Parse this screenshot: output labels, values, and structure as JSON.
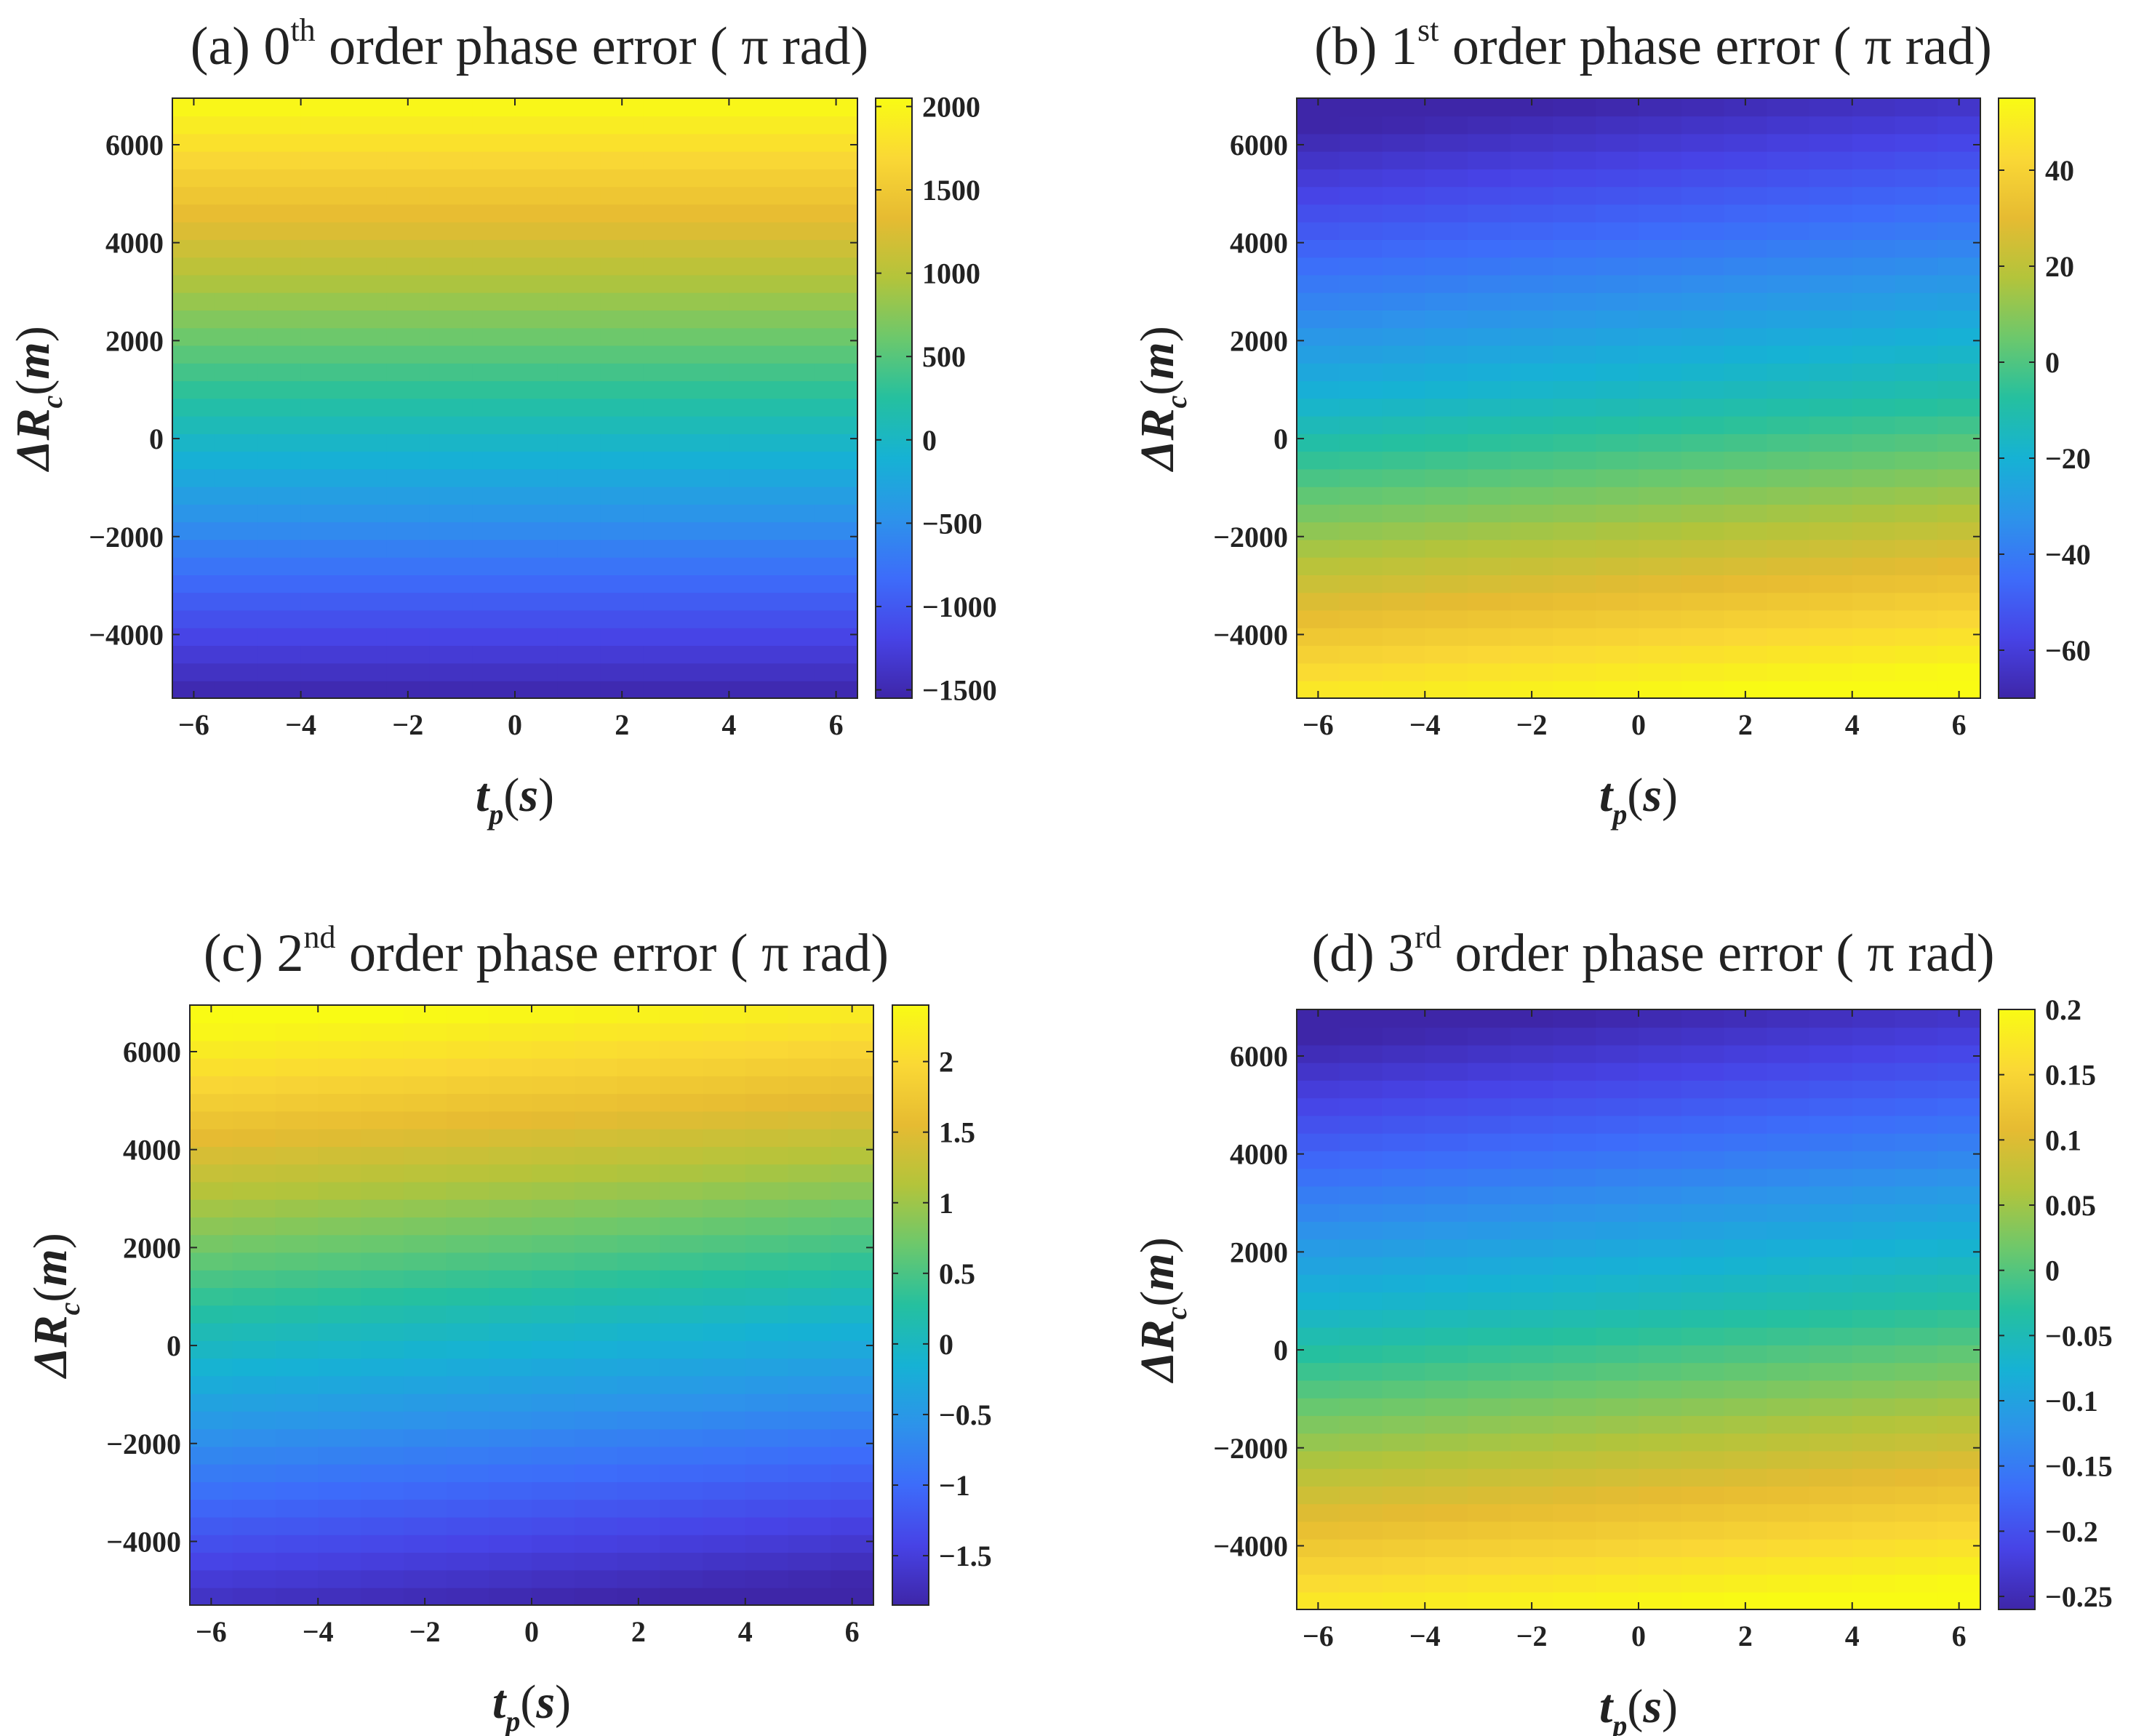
{
  "chart_data": [
    {
      "panel": "(a)",
      "type": "heatmap",
      "title": {
        "prefix": "(a) 0",
        "sup": "th",
        "suffix": " order phase error ( π  rad)"
      },
      "xlabel": {
        "main": "t",
        "sub": "p",
        "unit": "s"
      },
      "ylabel": {
        "main": "ΔR",
        "sub": "c",
        "unit": "m"
      },
      "xlim": [
        -6.4,
        6.4
      ],
      "ylim": [
        -5300,
        6950
      ],
      "xticks": [
        -6,
        -4,
        -2,
        0,
        2,
        4,
        6
      ],
      "xtick_labels": [
        "−6",
        "−4",
        "−2",
        "0",
        "2",
        "4",
        "6"
      ],
      "yticks": [
        -4000,
        -2000,
        0,
        2000,
        4000,
        6000
      ],
      "ytick_labels": [
        "−4000",
        "−2000",
        "0",
        "2000",
        "4000",
        "6000"
      ],
      "clim": [
        -1550,
        2050
      ],
      "cticks": [
        -1500,
        -1000,
        -500,
        0,
        500,
        1000,
        1500,
        2000
      ],
      "ctick_labels": [
        "−1500",
        "−1000",
        "−500",
        "0",
        "500",
        "1000",
        "1500",
        "2000"
      ],
      "colormap": "parula",
      "profile": {
        "y": [
          -5300,
          0,
          6950
        ],
        "value": [
          -1550,
          0,
          2050
        ]
      },
      "x_variation": 0.0
    },
    {
      "panel": "(b)",
      "type": "heatmap",
      "title": {
        "prefix": "(b) 1",
        "sup": "st",
        "suffix": "  order phase error ( π  rad)"
      },
      "xlabel": {
        "main": "t",
        "sub": "p",
        "unit": "s"
      },
      "ylabel": {
        "main": "ΔR",
        "sub": "c",
        "unit": "m"
      },
      "xlim": [
        -6.4,
        6.4
      ],
      "ylim": [
        -5300,
        6950
      ],
      "xticks": [
        -6,
        -4,
        -2,
        0,
        2,
        4,
        6
      ],
      "xtick_labels": [
        "−6",
        "−4",
        "−2",
        "0",
        "2",
        "4",
        "6"
      ],
      "yticks": [
        -4000,
        -2000,
        0,
        2000,
        4000,
        6000
      ],
      "ytick_labels": [
        "−4000",
        "−2000",
        "0",
        "2000",
        "4000",
        "6000"
      ],
      "clim": [
        -70,
        55
      ],
      "cticks": [
        -60,
        -40,
        -20,
        0,
        20,
        40
      ],
      "ctick_labels": [
        "−60",
        "−40",
        "−20",
        "0",
        "20",
        "40"
      ],
      "colormap": "parula",
      "profile": {
        "y": [
          -5300,
          900,
          6950
        ],
        "value": [
          55,
          -15,
          -70
        ]
      },
      "x_variation": 0.045
    },
    {
      "panel": "(c)",
      "type": "heatmap",
      "title": {
        "prefix": "(c) 2",
        "sup": "nd",
        "suffix": " order phase error ( π  rad)"
      },
      "xlabel": {
        "main": "t",
        "sub": "p",
        "unit": "s"
      },
      "ylabel": {
        "main": "ΔR",
        "sub": "c",
        "unit": "m"
      },
      "xlim": [
        -6.4,
        6.4
      ],
      "ylim": [
        -5300,
        6950
      ],
      "xticks": [
        -6,
        -4,
        -2,
        0,
        2,
        4,
        6
      ],
      "xtick_labels": [
        "−6",
        "−4",
        "−2",
        "0",
        "2",
        "4",
        "6"
      ],
      "yticks": [
        -4000,
        -2000,
        0,
        2000,
        4000,
        6000
      ],
      "ytick_labels": [
        "−4000",
        "−2000",
        "0",
        "2000",
        "4000",
        "6000"
      ],
      "clim": [
        -1.85,
        2.4
      ],
      "cticks": [
        -1.5,
        -1,
        -0.5,
        0,
        0.5,
        1,
        1.5,
        2
      ],
      "ctick_labels": [
        "−1.5",
        "−1",
        "−0.5",
        "0",
        "0.5",
        "1",
        "1.5",
        "2"
      ],
      "colormap": "parula",
      "profile": {
        "y": [
          -5300,
          400,
          6950
        ],
        "value": [
          -1.85,
          0,
          2.4
        ]
      },
      "x_variation": -0.035
    },
    {
      "panel": "(d)",
      "type": "heatmap",
      "title": {
        "prefix": "(d) 3",
        "sup": "rd",
        "suffix": " order phase error ( π  rad)"
      },
      "xlabel": {
        "main": "t",
        "sub": "p",
        "unit": "s"
      },
      "ylabel": {
        "main": "ΔR",
        "sub": "c",
        "unit": "m"
      },
      "xlim": [
        -6.4,
        6.4
      ],
      "ylim": [
        -5300,
        6950
      ],
      "xticks": [
        -6,
        -4,
        -2,
        0,
        2,
        4,
        6
      ],
      "xtick_labels": [
        "−6",
        "−4",
        "−2",
        "0",
        "2",
        "4",
        "6"
      ],
      "yticks": [
        -4000,
        -2000,
        0,
        2000,
        4000,
        6000
      ],
      "ytick_labels": [
        "−4000",
        "−2000",
        "0",
        "2000",
        "4000",
        "6000"
      ],
      "clim": [
        -0.26,
        0.2
      ],
      "cticks": [
        -0.25,
        -0.2,
        -0.15,
        -0.1,
        -0.05,
        0,
        0.05,
        0.1,
        0.15,
        0.2
      ],
      "ctick_labels": [
        "−0.25",
        "−0.2",
        "−0.15",
        "−0.1",
        "−0.05",
        "0",
        "0.05",
        "0.1",
        "0.15",
        "0.2"
      ],
      "colormap": "parula",
      "profile": {
        "y": [
          -5300,
          900,
          6950
        ],
        "value": [
          0.2,
          -0.05,
          -0.26
        ]
      },
      "x_variation": 0.045
    }
  ],
  "colormap_stops": [
    "#3e26a8",
    "#4743e6",
    "#3d6cfa",
    "#2d93ea",
    "#16b2d4",
    "#25c09f",
    "#6cc86c",
    "#b3c43b",
    "#e6bb32",
    "#fad835",
    "#f9fb14"
  ]
}
